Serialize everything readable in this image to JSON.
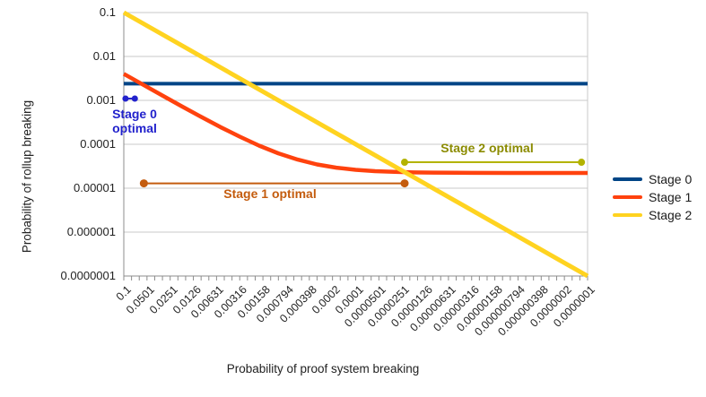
{
  "axes": {
    "y_title": "Probability of rollup breaking",
    "x_title": "Probability of proof system breaking",
    "y_ticks": [
      "0.1",
      "0.01",
      "0.001",
      "0.0001",
      "0.00001",
      "0.000001",
      "0.0000001"
    ],
    "x_ticks": [
      "0.1",
      "0.0501",
      "0.0251",
      "0.0126",
      "0.00631",
      "0.00316",
      "0.00158",
      "0.000794",
      "0.000398",
      "0.0002",
      "0.0001",
      "0.0000501",
      "0.0000251",
      "0.0000126",
      "0.00000631",
      "0.00000316",
      "0.00000158",
      "0.000000794",
      "0.000000398",
      "0.0000002",
      "0.0000001"
    ]
  },
  "legend": {
    "items": [
      {
        "label": "Stage 0",
        "color": "#004586"
      },
      {
        "label": "Stage 1",
        "color": "#ff420e"
      },
      {
        "label": "Stage 2",
        "color": "#ffd320"
      }
    ]
  },
  "chart_data": {
    "type": "line",
    "xlabel": "Probability of proof system breaking",
    "ylabel": "Probability of rollup breaking",
    "x_scale": "log",
    "y_scale": "log",
    "xlim": [
      0.1,
      1e-07
    ],
    "ylim": [
      1e-07,
      0.1
    ],
    "x_axis_direction": "decreasing",
    "grid": "horizontal-major",
    "legend_position": "right",
    "series": [
      {
        "name": "Stage 0",
        "color": "#004586",
        "points": [
          [
            0.1,
            0.0024
          ],
          [
            1e-07,
            0.0024
          ]
        ]
      },
      {
        "name": "Stage 1",
        "color": "#ff420e",
        "points": [
          [
            0.1,
            0.00402
          ],
          [
            0.0562,
            0.00227
          ],
          [
            0.0316,
            0.00129
          ],
          [
            0.0178,
            0.000733
          ],
          [
            0.01,
            0.000422
          ],
          [
            0.00562,
            0.000247
          ],
          [
            0.00316,
            0.000149
          ],
          [
            0.00178,
            9.34e-05
          ],
          [
            0.001,
            6.22e-05
          ],
          [
            0.000562,
            4.47e-05
          ],
          [
            0.000316,
            3.48e-05
          ],
          [
            0.000178,
            2.93e-05
          ],
          [
            0.0001,
            2.62e-05
          ],
          [
            5.62e-05,
            2.44e-05
          ],
          [
            3.16e-05,
            2.35e-05
          ],
          [
            1.78e-05,
            2.29e-05
          ],
          [
            1e-05,
            2.26e-05
          ],
          [
            3.16e-06,
            2.23e-05
          ],
          [
            1e-06,
            2.22e-05
          ],
          [
            1e-07,
            2.22e-05
          ]
        ]
      },
      {
        "name": "Stage 2",
        "color": "#ffd320",
        "points": [
          [
            0.1,
            0.1
          ],
          [
            1e-07,
            1e-07
          ]
        ]
      }
    ],
    "annotations": [
      {
        "name": "stage0-optimal",
        "label_lines": [
          "Stage 0",
          "optimal"
        ],
        "color": "#2222cc",
        "y": 0.0011,
        "x_start": 0.095,
        "x_end": 0.072
      },
      {
        "name": "stage1-optimal",
        "label": "Stage 1 optimal",
        "color": "#c45c0e",
        "y": 1.29e-05,
        "x_start": 0.055,
        "x_end": 2.33e-05
      },
      {
        "name": "stage2-optimal",
        "label": "Stage 2 optimal",
        "color": "#8b8b00",
        "marker_color": "#b3b300",
        "y": 3.9e-05,
        "x_start": 2.33e-05,
        "x_end": 1.2e-07
      }
    ]
  }
}
